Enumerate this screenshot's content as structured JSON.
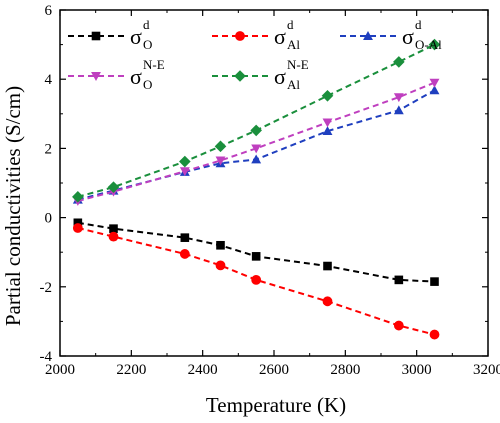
{
  "chart_data": {
    "type": "line",
    "xlabel": "Temperature (K)",
    "ylabel": "Partial conductivities (S/cm)",
    "xlim": [
      2000,
      3200
    ],
    "ylim": [
      -4,
      6
    ],
    "xticks": [
      2000,
      2200,
      2400,
      2600,
      2800,
      3000,
      3200
    ],
    "yticks": [
      -4,
      -2,
      0,
      2,
      4,
      6
    ],
    "grid": false,
    "legend_position": "top",
    "series": [
      {
        "name": "σ_O^d",
        "symbol": "σ",
        "subscript": "O",
        "superscript": "d",
        "color": "#000000",
        "marker": "square",
        "x": [
          2050,
          2150,
          2350,
          2450,
          2550,
          2750,
          2950,
          3050
        ],
        "y": [
          -0.15,
          -0.32,
          -0.58,
          -0.8,
          -1.12,
          -1.4,
          -1.8,
          -1.85
        ]
      },
      {
        "name": "σ_Al^d",
        "symbol": "σ",
        "subscript": "Al",
        "superscript": "d",
        "color": "#ff0000",
        "marker": "circle",
        "x": [
          2050,
          2150,
          2350,
          2450,
          2550,
          2750,
          2950,
          3050
        ],
        "y": [
          -0.3,
          -0.55,
          -1.05,
          -1.38,
          -1.8,
          -2.42,
          -3.12,
          -3.38
        ]
      },
      {
        "name": "σ_O-Al^d",
        "symbol": "σ",
        "subscript": "O-Al",
        "superscript": "d",
        "color": "#1f3fbf",
        "marker": "triangle-up",
        "x": [
          2050,
          2150,
          2350,
          2450,
          2550,
          2750,
          2950,
          3050
        ],
        "y": [
          0.52,
          0.78,
          1.32,
          1.57,
          1.68,
          2.5,
          3.1,
          3.68
        ]
      },
      {
        "name": "σ_O^N-E",
        "symbol": "σ",
        "subscript": "O",
        "superscript": "N-E",
        "color": "#bf3fbf",
        "marker": "triangle-down",
        "x": [
          2050,
          2150,
          2350,
          2450,
          2550,
          2750,
          2950,
          3050
        ],
        "y": [
          0.48,
          0.75,
          1.34,
          1.65,
          2.0,
          2.75,
          3.48,
          3.9
        ]
      },
      {
        "name": "σ_Al^N-E",
        "symbol": "σ",
        "subscript": "Al",
        "superscript": "N-E",
        "color": "#1a8f3c",
        "marker": "diamond",
        "x": [
          2050,
          2150,
          2350,
          2450,
          2550,
          2750,
          2950,
          3050
        ],
        "y": [
          0.6,
          0.88,
          1.62,
          2.06,
          2.52,
          3.52,
          4.5,
          5.0
        ]
      }
    ]
  }
}
